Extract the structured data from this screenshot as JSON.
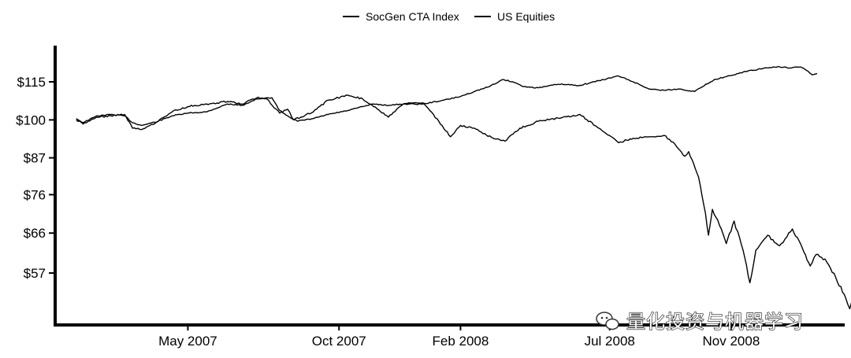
{
  "chart_data": {
    "type": "line",
    "title": "",
    "xlabel": "",
    "ylabel": "",
    "x_start": "2007-01-01",
    "x_end": "2009-01-31",
    "x_ticks": [
      {
        "label": "May 2007",
        "date": "2007-05-01"
      },
      {
        "label": "Oct 2007",
        "date": "2007-10-01"
      },
      {
        "label": "Feb 2008",
        "date": "2008-02-01"
      },
      {
        "label": "Jul 2008",
        "date": "2008-07-01"
      },
      {
        "label": "Nov 2008",
        "date": "2008-11-01"
      }
    ],
    "y_scale": "log",
    "ylim": [
      45,
      126
    ],
    "y_ticks": [
      {
        "label": "$115",
        "value": 115
      },
      {
        "label": "$100",
        "value": 100
      },
      {
        "label": "$87",
        "value": 87
      },
      {
        "label": "$76",
        "value": 76
      },
      {
        "label": "$66",
        "value": 66
      },
      {
        "label": "$57",
        "value": 57
      }
    ],
    "legend_position": "top-center",
    "series": [
      {
        "name": "SocGen CTA Index",
        "color": "#000000",
        "points": [
          [
            "2007-01-08",
            100.5
          ],
          [
            "2007-01-15",
            99.0
          ],
          [
            "2007-01-29",
            101.5
          ],
          [
            "2007-02-12",
            102.0
          ],
          [
            "2007-02-26",
            101.5
          ],
          [
            "2007-03-06",
            99.0
          ],
          [
            "2007-03-15",
            98.0
          ],
          [
            "2007-04-01",
            99.5
          ],
          [
            "2007-04-15",
            101.5
          ],
          [
            "2007-05-01",
            102.5
          ],
          [
            "2007-05-20",
            103.0
          ],
          [
            "2007-06-10",
            106.0
          ],
          [
            "2007-06-25",
            105.5
          ],
          [
            "2007-07-10",
            108.0
          ],
          [
            "2007-07-25",
            108.5
          ],
          [
            "2007-08-02",
            103.5
          ],
          [
            "2007-08-10",
            101.5
          ],
          [
            "2007-08-20",
            99.5
          ],
          [
            "2007-09-05",
            100.5
          ],
          [
            "2007-09-20",
            102.0
          ],
          [
            "2007-10-10",
            103.5
          ],
          [
            "2007-10-25",
            105.0
          ],
          [
            "2007-11-05",
            106.0
          ],
          [
            "2007-11-20",
            105.5
          ],
          [
            "2007-12-05",
            106.0
          ],
          [
            "2007-12-25",
            106.0
          ],
          [
            "2008-01-15",
            107.5
          ],
          [
            "2008-02-01",
            109.0
          ],
          [
            "2008-02-15",
            111.0
          ],
          [
            "2008-03-01",
            113.0
          ],
          [
            "2008-03-15",
            116.0
          ],
          [
            "2008-03-25",
            115.0
          ],
          [
            "2008-04-05",
            113.0
          ],
          [
            "2008-04-20",
            112.5
          ],
          [
            "2008-05-10",
            114.0
          ],
          [
            "2008-06-01",
            113.5
          ],
          [
            "2008-06-20",
            115.5
          ],
          [
            "2008-07-10",
            117.5
          ],
          [
            "2008-07-25",
            115.0
          ],
          [
            "2008-08-10",
            112.0
          ],
          [
            "2008-08-25",
            111.5
          ],
          [
            "2008-09-10",
            112.0
          ],
          [
            "2008-09-25",
            111.0
          ],
          [
            "2008-10-01",
            112.5
          ],
          [
            "2008-10-15",
            116.0
          ],
          [
            "2008-10-25",
            117.0
          ],
          [
            "2008-11-05",
            118.0
          ],
          [
            "2008-11-15",
            119.5
          ],
          [
            "2008-11-25",
            120.0
          ],
          [
            "2008-12-05",
            121.0
          ],
          [
            "2008-12-20",
            121.5
          ],
          [
            "2009-01-01",
            121.0
          ],
          [
            "2009-01-10",
            121.5
          ],
          [
            "2009-01-18",
            119.5
          ],
          [
            "2009-01-22",
            118.0
          ],
          [
            "2009-01-27",
            118.5
          ]
        ]
      },
      {
        "name": "US Equities",
        "color": "#000000",
        "points": [
          [
            "2007-01-08",
            100.0
          ],
          [
            "2007-01-15",
            98.5
          ],
          [
            "2007-01-29",
            101.0
          ],
          [
            "2007-02-12",
            101.5
          ],
          [
            "2007-02-26",
            102.0
          ],
          [
            "2007-03-06",
            97.0
          ],
          [
            "2007-03-15",
            96.5
          ],
          [
            "2007-04-01",
            99.5
          ],
          [
            "2007-04-15",
            103.0
          ],
          [
            "2007-05-01",
            105.0
          ],
          [
            "2007-05-20",
            106.0
          ],
          [
            "2007-06-10",
            107.0
          ],
          [
            "2007-06-25",
            106.0
          ],
          [
            "2007-07-10",
            108.5
          ],
          [
            "2007-07-20",
            108.0
          ],
          [
            "2007-08-02",
            102.5
          ],
          [
            "2007-08-10",
            104.0
          ],
          [
            "2007-08-16",
            100.0
          ],
          [
            "2007-09-05",
            103.0
          ],
          [
            "2007-09-20",
            107.5
          ],
          [
            "2007-10-10",
            109.5
          ],
          [
            "2007-10-25",
            108.0
          ],
          [
            "2007-11-05",
            105.0
          ],
          [
            "2007-11-20",
            101.0
          ],
          [
            "2007-12-05",
            106.0
          ],
          [
            "2007-12-25",
            106.5
          ],
          [
            "2008-01-10",
            99.5
          ],
          [
            "2008-01-22",
            94.0
          ],
          [
            "2008-02-01",
            98.0
          ],
          [
            "2008-02-15",
            97.0
          ],
          [
            "2008-03-05",
            93.5
          ],
          [
            "2008-03-17",
            92.5
          ],
          [
            "2008-04-01",
            97.0
          ],
          [
            "2008-04-20",
            99.5
          ],
          [
            "2008-05-15",
            101.0
          ],
          [
            "2008-06-01",
            102.0
          ],
          [
            "2008-06-20",
            97.0
          ],
          [
            "2008-07-10",
            92.0
          ],
          [
            "2008-07-25",
            93.5
          ],
          [
            "2008-08-10",
            94.0
          ],
          [
            "2008-08-25",
            94.5
          ],
          [
            "2008-09-05",
            91.5
          ],
          [
            "2008-09-15",
            87.5
          ],
          [
            "2008-09-19",
            89.0
          ],
          [
            "2008-09-29",
            81.0
          ],
          [
            "2008-10-06",
            71.0
          ],
          [
            "2008-10-09",
            65.5
          ],
          [
            "2008-10-13",
            72.0
          ],
          [
            "2008-10-22",
            67.0
          ],
          [
            "2008-10-27",
            63.5
          ],
          [
            "2008-11-04",
            69.0
          ],
          [
            "2008-11-13",
            62.0
          ],
          [
            "2008-11-20",
            55.0
          ],
          [
            "2008-11-26",
            62.0
          ],
          [
            "2008-12-08",
            65.5
          ],
          [
            "2008-12-20",
            63.0
          ],
          [
            "2009-01-02",
            67.0
          ],
          [
            "2009-01-12",
            62.5
          ],
          [
            "2009-01-20",
            58.5
          ],
          [
            "2009-01-26",
            61.0
          ],
          [
            "2009-02-04",
            60.0
          ],
          [
            "2009-02-15",
            56.0
          ],
          [
            "2009-02-25",
            52.0
          ],
          [
            "2009-03-01",
            50.0
          ],
          [
            "2009-03-10",
            56.0
          ],
          [
            "2009-03-16",
            60.0
          ],
          [
            "2009-03-20",
            59.0
          ],
          [
            "2009-03-27",
            58.5
          ]
        ]
      }
    ]
  },
  "watermark": {
    "text": "量化投资与机器学习",
    "icon": "wechat-icon"
  }
}
